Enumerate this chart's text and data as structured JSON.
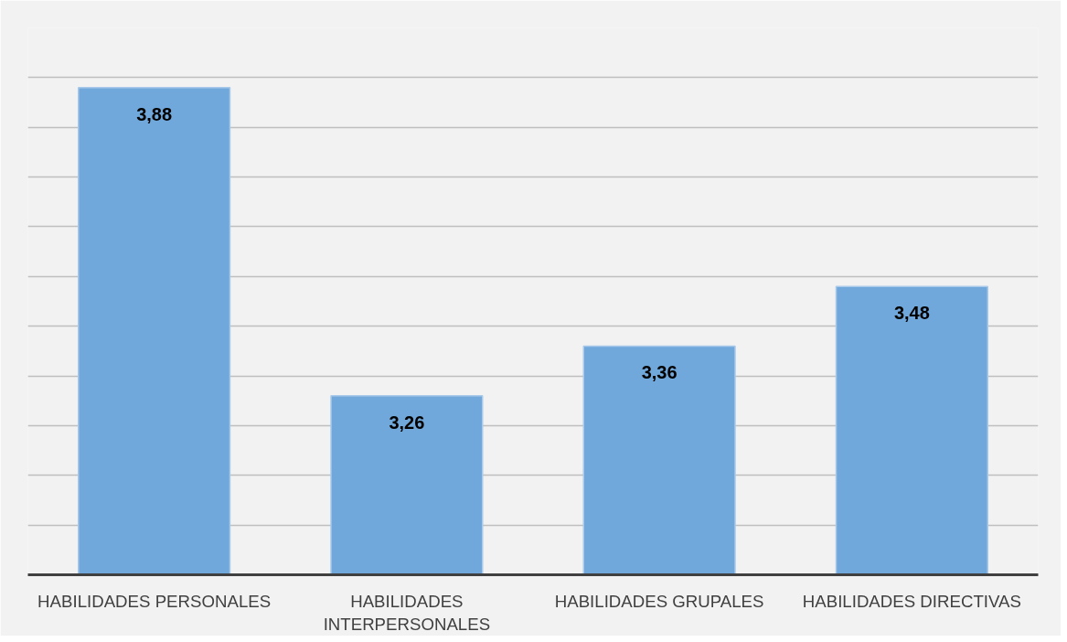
{
  "chart_data": {
    "type": "bar",
    "categories": [
      "HABILIDADES PERSONALES",
      "HABILIDADES INTERPERSONALES",
      "HABILIDADES GRUPALES",
      "HABILIDADES DIRECTIVAS"
    ],
    "values": [
      3.88,
      3.26,
      3.36,
      3.48
    ],
    "value_labels": [
      "3,88",
      "3,26",
      "3,36",
      "3,48"
    ],
    "color": "#70a8db",
    "ylim": [
      2.9,
      4.0
    ],
    "yticks": [
      {
        "value": 3.0,
        "label": null
      },
      {
        "value": 3.1,
        "label": null
      },
      {
        "value": 3.2,
        "label": null
      },
      {
        "value": 3.3,
        "label": null
      },
      {
        "value": 3.4,
        "label": null
      },
      {
        "value": 3.5,
        "label": null
      },
      {
        "value": 3.6,
        "label": null
      },
      {
        "value": 3.7,
        "label": null
      },
      {
        "value": 3.8,
        "label": null
      },
      {
        "value": 3.9,
        "label": null
      },
      {
        "value": 4.0,
        "label": null
      }
    ],
    "tick_labels": "x",
    "grid": "y"
  }
}
